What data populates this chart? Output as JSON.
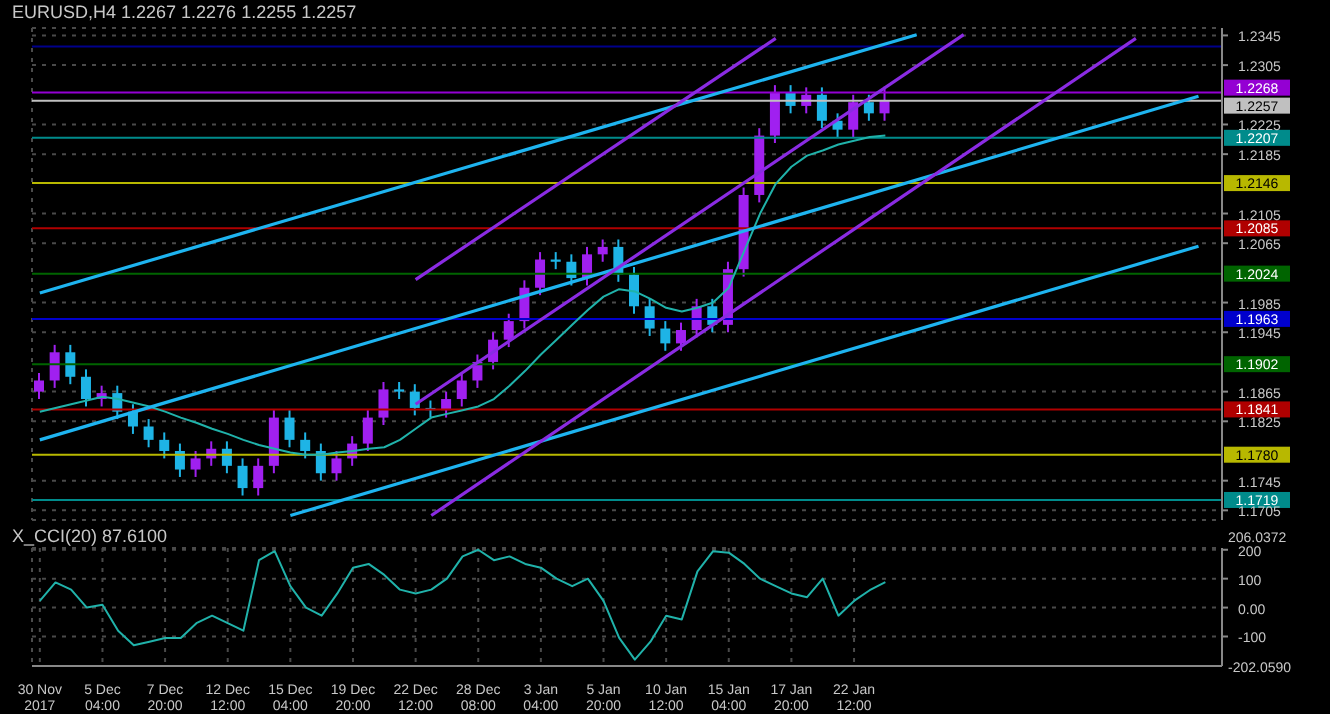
{
  "chart_data": [
    {
      "type": "candlestick",
      "title": "EURUSD,H4  1.2267 1.2276 1.2255 1.2257",
      "categories": [
        null,
        null,
        null,
        null,
        null,
        null,
        null,
        null,
        null,
        null,
        null,
        null,
        null,
        null,
        null,
        null,
        null,
        null,
        null,
        null,
        null,
        null,
        null,
        null,
        null,
        null,
        null,
        null,
        null,
        null,
        null,
        null,
        null,
        null,
        null,
        null,
        null,
        null,
        null,
        null,
        null,
        null,
        null,
        null,
        null,
        null,
        null,
        null,
        null,
        null,
        null,
        null,
        null,
        null,
        null,
        null,
        null,
        null,
        null,
        null,
        null,
        null,
        null,
        null,
        null,
        null,
        null,
        null,
        null,
        null,
        null,
        null,
        null,
        null,
        null,
        null
      ],
      "ohlc": [
        [
          1.1865,
          1.189,
          1.1855,
          1.188
        ],
        [
          1.188,
          1.1928,
          1.187,
          1.1918
        ],
        [
          1.1918,
          1.1928,
          1.1875,
          1.1885
        ],
        [
          1.1885,
          1.1895,
          1.1845,
          1.1855
        ],
        [
          1.1855,
          1.1873,
          1.1845,
          1.1863
        ],
        [
          1.1863,
          1.1873,
          1.1828,
          1.1838
        ],
        [
          1.1838,
          1.1848,
          1.1808,
          1.1818
        ],
        [
          1.1818,
          1.1828,
          1.179,
          1.18
        ],
        [
          1.18,
          1.181,
          1.1775,
          1.1785
        ],
        [
          1.1785,
          1.1795,
          1.175,
          1.176
        ],
        [
          1.176,
          1.1785,
          1.175,
          1.1775
        ],
        [
          1.1775,
          1.1798,
          1.1765,
          1.1788
        ],
        [
          1.1788,
          1.1798,
          1.1755,
          1.1765
        ],
        [
          1.1765,
          1.1775,
          1.1725,
          1.1735
        ],
        [
          1.1735,
          1.1775,
          1.1725,
          1.1765
        ],
        [
          1.1765,
          1.184,
          1.1755,
          1.183
        ],
        [
          1.183,
          1.184,
          1.179,
          1.18
        ],
        [
          1.18,
          1.181,
          1.1775,
          1.1785
        ],
        [
          1.1785,
          1.1795,
          1.1745,
          1.1755
        ],
        [
          1.1755,
          1.1785,
          1.1745,
          1.1775
        ],
        [
          1.1775,
          1.1805,
          1.1765,
          1.1795
        ],
        [
          1.1795,
          1.184,
          1.1785,
          1.183
        ],
        [
          1.183,
          1.1878,
          1.182,
          1.1868
        ],
        [
          1.1868,
          1.1878,
          1.1855,
          1.1865
        ],
        [
          1.1865,
          1.1875,
          1.1833,
          1.1843
        ],
        [
          1.1843,
          1.1853,
          1.183,
          1.184
        ],
        [
          1.184,
          1.1865,
          1.183,
          1.1855
        ],
        [
          1.1855,
          1.189,
          1.1845,
          1.188
        ],
        [
          1.188,
          1.1915,
          1.187,
          1.1905
        ],
        [
          1.1905,
          1.1945,
          1.1895,
          1.1935
        ],
        [
          1.1935,
          1.197,
          1.1925,
          1.196
        ],
        [
          1.196,
          1.2015,
          1.195,
          1.2005
        ],
        [
          1.2005,
          1.2053,
          1.1995,
          1.2043
        ],
        [
          1.2043,
          1.2053,
          1.203,
          1.204
        ],
        [
          1.204,
          1.205,
          1.2008,
          1.2018
        ],
        [
          1.2018,
          1.206,
          1.2008,
          1.205
        ],
        [
          1.205,
          1.207,
          1.204,
          1.206
        ],
        [
          1.206,
          1.207,
          1.2013,
          1.2023
        ],
        [
          1.2023,
          1.2033,
          1.197,
          1.198
        ],
        [
          1.198,
          1.199,
          1.194,
          1.195
        ],
        [
          1.195,
          1.196,
          1.192,
          1.193
        ],
        [
          1.193,
          1.1958,
          1.192,
          1.1948
        ],
        [
          1.1948,
          1.199,
          1.1938,
          1.198
        ],
        [
          1.198,
          1.199,
          1.1945,
          1.1955
        ],
        [
          1.1955,
          1.204,
          1.1945,
          1.203
        ],
        [
          1.203,
          1.214,
          1.202,
          1.213
        ],
        [
          1.213,
          1.222,
          1.212,
          1.221
        ],
        [
          1.221,
          1.2278,
          1.22,
          1.2268
        ],
        [
          1.2268,
          1.2278,
          1.224,
          1.225
        ],
        [
          1.225,
          1.2275,
          1.224,
          1.2265
        ],
        [
          1.2265,
          1.2275,
          1.222,
          1.223
        ],
        [
          1.223,
          1.224,
          1.2208,
          1.2218
        ],
        [
          1.2218,
          1.2265,
          1.2208,
          1.2255
        ],
        [
          1.2255,
          1.2265,
          1.223,
          1.224
        ],
        [
          1.224,
          1.2276,
          1.223,
          1.2257
        ],
        null,
        null,
        null,
        null,
        null,
        null,
        null,
        null,
        null,
        null,
        null,
        null,
        null,
        null,
        null,
        null,
        null,
        null,
        null,
        null,
        null
      ],
      "colors": [
        "#a020f0",
        "#a020f0",
        "#1eb4e6",
        "#1eb4e6",
        "#a020f0",
        "#1eb4e6",
        "#1eb4e6",
        "#1eb4e6",
        "#1eb4e6",
        "#1eb4e6",
        "#a020f0",
        "#a020f0",
        "#1eb4e6",
        "#1eb4e6",
        "#a020f0",
        "#a020f0",
        "#1eb4e6",
        "#1eb4e6",
        "#1eb4e6",
        "#a020f0",
        "#a020f0",
        "#a020f0",
        "#a020f0",
        "#1eb4e6",
        "#1eb4e6",
        "#1eb4e6",
        "#a020f0",
        "#a020f0",
        "#a020f0",
        "#a020f0",
        "#a020f0",
        "#a020f0",
        "#a020f0",
        "#1eb4e6",
        "#1eb4e6",
        "#a020f0",
        "#a020f0",
        "#1eb4e6",
        "#1eb4e6",
        "#1eb4e6",
        "#1eb4e6",
        "#a020f0",
        "#a020f0",
        "#1eb4e6",
        "#a020f0",
        "#a020f0",
        "#a020f0",
        "#a020f0",
        "#1eb4e6",
        "#a020f0",
        "#1eb4e6",
        "#1eb4e6",
        "#a020f0",
        "#1eb4e6",
        "#a020f0",
        null,
        null,
        null,
        null,
        null,
        null,
        null,
        null,
        null,
        null,
        null,
        null,
        null,
        null,
        null,
        null,
        null,
        null,
        null,
        null,
        null
      ],
      "series": [
        {
          "type": "line",
          "color": "#20b2aa",
          "values": [
            1.1838,
            1.1843,
            1.1848,
            1.1853,
            1.1858,
            1.1855,
            1.185,
            1.1845,
            1.1838,
            1.183,
            1.1823,
            1.1815,
            1.1808,
            1.18,
            1.1793,
            1.1788,
            1.1783,
            1.178,
            1.178,
            1.1783,
            1.1785,
            1.1788,
            1.179,
            1.18,
            1.1815,
            1.183,
            1.1835,
            1.184,
            1.1845,
            1.1855,
            1.1873,
            1.1893,
            1.1915,
            1.1935,
            1.1955,
            1.1975,
            1.1993,
            1.2003,
            1.2,
            1.199,
            1.1978,
            1.1973,
            1.1978,
            1.1985,
            1.2005,
            1.2055,
            1.2105,
            1.2145,
            1.2168,
            1.2183,
            1.219,
            1.2198,
            1.2203,
            1.2208,
            1.221,
            null,
            null,
            null,
            null,
            null,
            null,
            null,
            null,
            null,
            null,
            null,
            null,
            null,
            null,
            null,
            null,
            null,
            null,
            null,
            null,
            null
          ]
        },
        {
          "type": "line",
          "color": "#1eb4f0",
          "values": [
            1.1998,
            null,
            null,
            null,
            null,
            null,
            null,
            null,
            null,
            null,
            null,
            null,
            null,
            null,
            null,
            null,
            null,
            null,
            null,
            null,
            null,
            null,
            null,
            null,
            null,
            null,
            null,
            null,
            null,
            null,
            null,
            null,
            null,
            null,
            null,
            null,
            null,
            null,
            null,
            null,
            null,
            null,
            null,
            null,
            null,
            null,
            null,
            null,
            null,
            null,
            null,
            null,
            null,
            null,
            null,
            null,
            1.2346,
            null,
            null,
            null,
            null,
            null,
            null,
            null,
            null,
            null,
            null,
            null,
            null,
            null,
            null,
            null,
            null,
            null,
            null,
            null
          ]
        },
        {
          "type": "line",
          "color": "#1eb4f0",
          "values": [
            1.18,
            null,
            null,
            null,
            null,
            null,
            null,
            null,
            null,
            null,
            null,
            null,
            null,
            null,
            null,
            null,
            null,
            null,
            null,
            null,
            null,
            null,
            null,
            null,
            null,
            null,
            null,
            null,
            null,
            null,
            null,
            null,
            null,
            null,
            null,
            null,
            null,
            null,
            null,
            null,
            null,
            null,
            null,
            null,
            null,
            null,
            null,
            null,
            null,
            null,
            null,
            null,
            null,
            null,
            null,
            null,
            null,
            null,
            null,
            null,
            null,
            null,
            null,
            null,
            null,
            null,
            null,
            null,
            null,
            null,
            null,
            null,
            null,
            null,
            1.2263,
            null
          ]
        },
        {
          "type": "line",
          "color": "#1eb4f0",
          "values": [
            null,
            null,
            null,
            null,
            null,
            null,
            null,
            null,
            null,
            null,
            null,
            null,
            null,
            null,
            null,
            null,
            1.1698,
            null,
            null,
            null,
            null,
            null,
            null,
            null,
            null,
            null,
            null,
            null,
            null,
            null,
            null,
            null,
            null,
            null,
            null,
            null,
            null,
            null,
            null,
            null,
            null,
            null,
            null,
            null,
            null,
            null,
            null,
            null,
            null,
            null,
            null,
            null,
            null,
            null,
            null,
            null,
            null,
            null,
            null,
            null,
            null,
            null,
            null,
            null,
            null,
            null,
            null,
            null,
            null,
            null,
            null,
            null,
            null,
            null,
            1.2061,
            null
          ]
        },
        {
          "type": "line",
          "color": "#8a2be2",
          "values": [
            null,
            null,
            null,
            null,
            null,
            null,
            null,
            null,
            null,
            null,
            null,
            null,
            null,
            null,
            null,
            null,
            null,
            null,
            null,
            null,
            null,
            null,
            null,
            null,
            1.2016,
            null,
            null,
            null,
            null,
            null,
            null,
            null,
            null,
            null,
            null,
            null,
            null,
            null,
            null,
            null,
            null,
            null,
            null,
            null,
            null,
            null,
            null,
            1.2341,
            null,
            null,
            null,
            null,
            null,
            null,
            null,
            null,
            null,
            null,
            null,
            null,
            null,
            null,
            null,
            null,
            null,
            null,
            null,
            null,
            null,
            null,
            null,
            null,
            null,
            null,
            null,
            null
          ]
        },
        {
          "type": "line",
          "color": "#8a2be2",
          "values": [
            null,
            null,
            null,
            null,
            null,
            null,
            null,
            null,
            null,
            null,
            null,
            null,
            null,
            null,
            null,
            null,
            null,
            null,
            null,
            null,
            null,
            null,
            null,
            null,
            1.1848,
            null,
            null,
            null,
            null,
            null,
            null,
            null,
            null,
            null,
            null,
            null,
            null,
            null,
            null,
            null,
            null,
            null,
            null,
            null,
            null,
            null,
            null,
            null,
            null,
            null,
            null,
            null,
            null,
            null,
            null,
            null,
            null,
            null,
            null,
            1.2346,
            null,
            null,
            null,
            null,
            null,
            null,
            null,
            null,
            null,
            null,
            null,
            null,
            null,
            null,
            null,
            null
          ]
        },
        {
          "type": "line",
          "color": "#8a2be2",
          "values": [
            null,
            null,
            null,
            null,
            null,
            null,
            null,
            null,
            null,
            null,
            null,
            null,
            null,
            null,
            null,
            null,
            null,
            null,
            null,
            null,
            null,
            null,
            null,
            null,
            null,
            1.1698,
            null,
            null,
            null,
            null,
            null,
            null,
            null,
            null,
            null,
            null,
            null,
            null,
            null,
            null,
            null,
            null,
            null,
            null,
            null,
            null,
            null,
            null,
            null,
            null,
            null,
            null,
            null,
            null,
            null,
            null,
            null,
            null,
            null,
            null,
            null,
            null,
            null,
            null,
            null,
            null,
            null,
            null,
            null,
            null,
            1.2341,
            null,
            null,
            null,
            null,
            null
          ]
        }
      ],
      "ylim": [
        1.1692,
        1.2355
      ],
      "yticks": [
        1.2345,
        1.2305,
        1.2225,
        1.2185,
        1.2105,
        1.2065,
        1.1985,
        1.1945,
        1.1865,
        1.1825,
        1.1745,
        1.1705
      ],
      "ref_lines": [
        {
          "axis": "y",
          "value": 1.233,
          "color": "#00008b"
        },
        {
          "axis": "y",
          "value": 1.2268,
          "label": "1.2268",
          "color": "#9400d3"
        },
        {
          "axis": "y",
          "value": 1.2257,
          "label": "1.2257",
          "color": "#c0c0c0"
        },
        {
          "axis": "y",
          "value": 1.2207,
          "label": "1.2207",
          "color": "#008b8b"
        },
        {
          "axis": "y",
          "value": 1.2146,
          "label": "1.2146",
          "color": "#b8b800"
        },
        {
          "axis": "y",
          "value": 1.2085,
          "label": "1.2085",
          "color": "#b00000"
        },
        {
          "axis": "y",
          "value": 1.2024,
          "label": "1.2024",
          "color": "#006400"
        },
        {
          "axis": "y",
          "value": 1.1963,
          "label": "1.1963",
          "color": "#0000cd"
        },
        {
          "axis": "y",
          "value": 1.1902,
          "label": "1.1902",
          "color": "#006400"
        },
        {
          "axis": "y",
          "value": 1.1841,
          "label": "1.1841",
          "color": "#b00000"
        },
        {
          "axis": "y",
          "value": 1.178,
          "label": "1.1780",
          "color": "#b8b800"
        },
        {
          "axis": "y",
          "value": 1.1719,
          "label": "1.1719",
          "color": "#008b8b"
        }
      ],
      "grid": true,
      "tick_labels": "y"
    },
    {
      "type": "line",
      "title": "X_CCI(20) 87.6100",
      "categories": [
        "30 Nov 2017",
        null,
        null,
        null,
        "5 Dec 04:00",
        null,
        null,
        null,
        "7 Dec 20:00",
        null,
        null,
        null,
        "12 Dec 12:00",
        null,
        null,
        null,
        "15 Dec 04:00",
        null,
        null,
        null,
        "19 Dec 20:00",
        null,
        null,
        null,
        "22 Dec 12:00",
        null,
        null,
        null,
        "28 Dec 08:00",
        null,
        null,
        null,
        "3 Jan 04:00",
        null,
        null,
        null,
        "5 Jan 20:00",
        null,
        null,
        null,
        "10 Jan 12:00",
        null,
        null,
        null,
        "15 Jan 04:00",
        null,
        null,
        null,
        "17 Jan 20:00",
        null,
        null,
        null,
        "22 Jan 12:00",
        null,
        null,
        null,
        null,
        null,
        null,
        null,
        null,
        null,
        null,
        null,
        null,
        null,
        null,
        null,
        null,
        null,
        null,
        null,
        null,
        null,
        null,
        null
      ],
      "series": [
        {
          "color": "#20b2aa",
          "values": [
            23,
            87,
            62,
            0,
            10,
            -80,
            -130,
            -118,
            -105,
            -105,
            -54,
            -28,
            -54,
            -80,
            164,
            195,
            74,
            0,
            -28,
            49,
            138,
            151,
            113,
            62,
            49,
            62,
            100,
            177,
            200,
            164,
            177,
            151,
            138,
            100,
            74,
            100,
            23,
            -105,
            -180,
            -118,
            -28,
            -41,
            125,
            195,
            190,
            151,
            100,
            74,
            49,
            36,
            100,
            -28,
            23,
            60,
            88,
            null,
            null,
            null,
            null,
            null,
            null,
            null,
            null,
            null,
            null,
            null,
            null,
            null,
            null,
            null,
            null,
            null,
            null,
            null,
            null,
            null
          ]
        }
      ],
      "ylim": [
        -202.059,
        206.0372
      ],
      "yticks": [
        200,
        100,
        {
          "value": 0,
          "label": "0.00"
        },
        -100
      ],
      "annotations": [
        "206.0372",
        "-202.0590"
      ],
      "grid": true
    }
  ]
}
